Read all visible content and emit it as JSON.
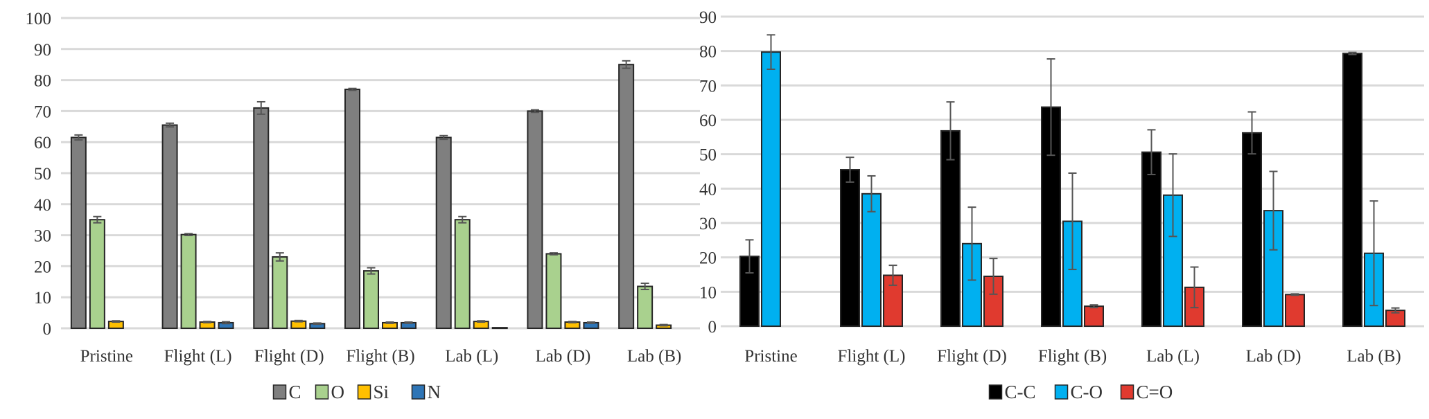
{
  "chart_data": [
    {
      "type": "bar",
      "categories": [
        "Pristine",
        "Flight (L)",
        "Flight (D)",
        "Flight (B)",
        "Lab (L)",
        "Lab (D)",
        "Lab (B)"
      ],
      "ylim": [
        0,
        100
      ],
      "yticks": [
        0,
        10,
        20,
        30,
        40,
        50,
        60,
        70,
        80,
        90,
        100
      ],
      "grid": true,
      "legend_position": "bottom",
      "error_bars": true,
      "series": [
        {
          "name": "C",
          "color": "#7f7f7f",
          "values": [
            61.5,
            65.5,
            71,
            77,
            61.5,
            70,
            85
          ],
          "errors": [
            0.8,
            0.6,
            2,
            0.3,
            0.6,
            0.4,
            1.2
          ]
        },
        {
          "name": "O",
          "color": "#a9d18e",
          "values": [
            35,
            30.2,
            23,
            18.5,
            35,
            24,
            13.5
          ],
          "errors": [
            1,
            0.3,
            1.3,
            1,
            1,
            0.3,
            1
          ]
        },
        {
          "name": "Si",
          "color": "#ffc000",
          "values": [
            2.2,
            2,
            2.3,
            1.8,
            2.2,
            2,
            1
          ],
          "errors": [
            0.2,
            0.2,
            0.2,
            0.2,
            0.2,
            0.2,
            0.2
          ]
        },
        {
          "name": "N",
          "color": "#2e75b6",
          "values": [
            null,
            1.8,
            1.5,
            1.8,
            0.2,
            1.8,
            null
          ],
          "errors": [
            0,
            0.3,
            0.2,
            0.2,
            0,
            0.2,
            0
          ]
        }
      ]
    },
    {
      "type": "bar",
      "categories": [
        "Pristine",
        "Flight (L)",
        "Flight (D)",
        "Flight (B)",
        "Lab (L)",
        "Lab (D)",
        "Lab (B)"
      ],
      "ylim": [
        0,
        90
      ],
      "yticks": [
        0,
        10,
        20,
        30,
        40,
        50,
        60,
        70,
        80,
        90
      ],
      "grid": true,
      "legend_position": "bottom",
      "error_bars": true,
      "series": [
        {
          "name": "C-C",
          "color": "#000000",
          "values": [
            20.3,
            45.5,
            56.8,
            63.7,
            50.6,
            56.2,
            79.3
          ],
          "errors": [
            4.8,
            3.6,
            8.4,
            14,
            6.5,
            6.1,
            0.3
          ]
        },
        {
          "name": "C-O",
          "color": "#00b0f0",
          "values": [
            79.7,
            38.5,
            24,
            30.5,
            38.1,
            33.6,
            21.2
          ],
          "errors": [
            5,
            5.2,
            10.6,
            14,
            12,
            11.4,
            15.2
          ]
        },
        {
          "name": "C=O",
          "color": "#e03a2f",
          "values": [
            null,
            14.8,
            14.5,
            5.8,
            11.3,
            9.2,
            4.6
          ],
          "errors": [
            0,
            2.9,
            5.2,
            0.4,
            5.9,
            0.2,
            0.7
          ]
        }
      ]
    }
  ]
}
